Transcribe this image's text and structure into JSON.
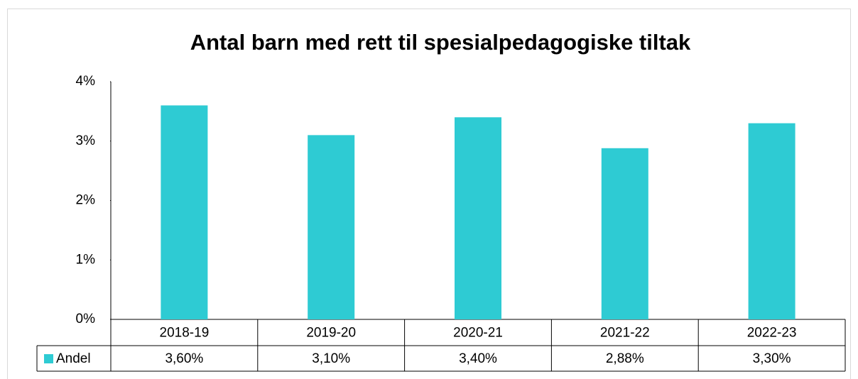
{
  "chart_data": {
    "type": "bar",
    "title": "Antal barn med rett til spesialpedagogiske tiltak",
    "categories": [
      "2018-19",
      "2019-20",
      "2020-21",
      "2021-22",
      "2022-23"
    ],
    "series": [
      {
        "name": "Andel",
        "color": "#2ecbd3",
        "values": [
          3.6,
          3.1,
          3.4,
          2.88,
          3.3
        ],
        "value_labels": [
          "3,60%",
          "3,10%",
          "3,40%",
          "2,88%",
          "3,30%"
        ]
      }
    ],
    "ylim": [
      0,
      4
    ],
    "yticks": [
      {
        "value": 0,
        "label": "0%"
      },
      {
        "value": 1,
        "label": "1%"
      },
      {
        "value": 2,
        "label": "2%"
      },
      {
        "value": 3,
        "label": "3%"
      },
      {
        "value": 4,
        "label": "4%"
      }
    ],
    "grid": false
  }
}
